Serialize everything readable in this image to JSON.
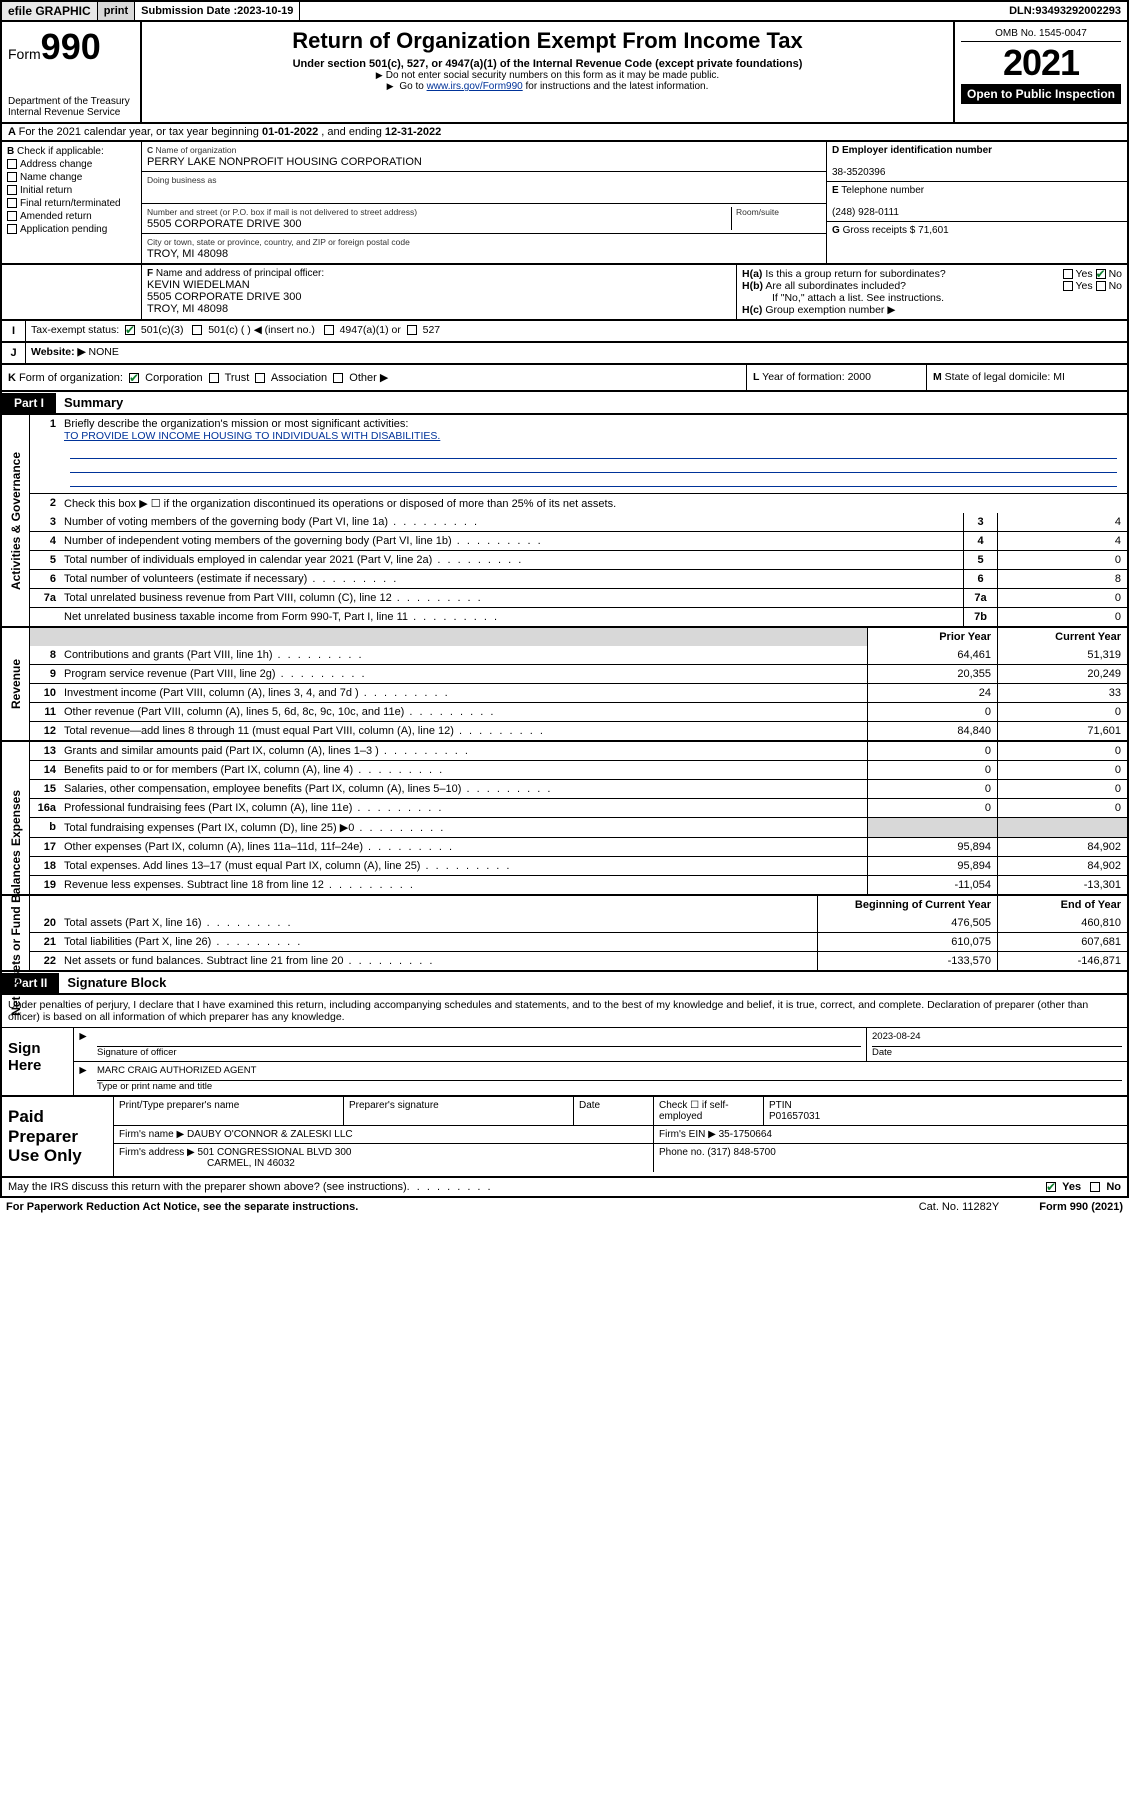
{
  "topbar": {
    "efile": "efile GRAPHIC",
    "print": "print",
    "submission_label": "Submission Date : ",
    "submission_date": "2023-10-19",
    "dln_label": "DLN: ",
    "dln": "93493292002293"
  },
  "header": {
    "form_label": "Form",
    "form_num": "990",
    "dept": "Department of the Treasury",
    "irs": "Internal Revenue Service",
    "title": "Return of Organization Exempt From Income Tax",
    "sub1": "Under section 501(c), 527, or 4947(a)(1) of the Internal Revenue Code (except private foundations)",
    "sub2": "Do not enter social security numbers on this form as it may be made public.",
    "sub3_pre": "Go to ",
    "sub3_link": "www.irs.gov/Form990",
    "sub3_post": " for instructions and the latest information.",
    "omb": "OMB No. 1545-0047",
    "year": "2021",
    "open": "Open to Public Inspection"
  },
  "A": {
    "text_pre": "For the 2021 calendar year, or tax year beginning ",
    "begin": "01-01-2022",
    "mid": " , and ending ",
    "end": "12-31-2022"
  },
  "B": {
    "label": "Check if applicable:",
    "opts": [
      "Address change",
      "Name change",
      "Initial return",
      "Final return/terminated",
      "Amended return",
      "Application pending"
    ]
  },
  "C": {
    "name_label": "Name of organization",
    "name": "PERRY LAKE NONPROFIT HOUSING CORPORATION",
    "dba_label": "Doing business as",
    "dba": "",
    "addr_label": "Number and street (or P.O. box if mail is not delivered to street address)",
    "room_label": "Room/suite",
    "addr": "5505 CORPORATE DRIVE 300",
    "city_label": "City or town, state or province, country, and ZIP or foreign postal code",
    "city": "TROY, MI  48098"
  },
  "D": {
    "label": "Employer identification number",
    "val": "38-3520396"
  },
  "E": {
    "label": "Telephone number",
    "val": "(248) 928-0111"
  },
  "G": {
    "label": "Gross receipts $",
    "val": "71,601"
  },
  "F": {
    "label": "Name and address of principal officer:",
    "name": "KEVIN WIEDELMAN",
    "addr1": "5505 CORPORATE DRIVE 300",
    "addr2": "TROY, MI  48098"
  },
  "H": {
    "a": "Is this a group return for subordinates?",
    "a_yes": "Yes",
    "a_no": "No",
    "b": "Are all subordinates included?",
    "b_note": "If \"No,\" attach a list. See instructions.",
    "c": "Group exemption number ▶"
  },
  "I": {
    "label": "Tax-exempt status:",
    "opts": [
      "501(c)(3)",
      "501(c) (  ) ◀ (insert no.)",
      "4947(a)(1) or",
      "527"
    ]
  },
  "J": {
    "label": "Website: ▶",
    "val": "NONE"
  },
  "K": {
    "label": "Form of organization:",
    "opts": [
      "Corporation",
      "Trust",
      "Association",
      "Other ▶"
    ]
  },
  "L": {
    "label": "Year of formation:",
    "val": "2000"
  },
  "M": {
    "label": "State of legal domicile:",
    "val": "MI"
  },
  "part1": {
    "tag": "Part I",
    "title": "Summary",
    "sections": {
      "gov": "Activities & Governance",
      "rev": "Revenue",
      "exp": "Expenses",
      "net": "Net Assets or Fund Balances"
    },
    "line1": "Briefly describe the organization's mission or most significant activities:",
    "mission": "TO PROVIDE LOW INCOME HOUSING TO INDIVIDUALS WITH DISABILITIES.",
    "line2": "Check this box ▶ ☐  if the organization discontinued its operations or disposed of more than 25% of its net assets.",
    "hdr_prior": "Prior Year",
    "hdr_curr": "Current Year",
    "hdr_beg": "Beginning of Current Year",
    "hdr_end": "End of Year",
    "rows_gov": [
      {
        "n": "3",
        "d": "Number of voting members of the governing body (Part VI, line 1a)",
        "box": "3",
        "v": "4"
      },
      {
        "n": "4",
        "d": "Number of independent voting members of the governing body (Part VI, line 1b)",
        "box": "4",
        "v": "4"
      },
      {
        "n": "5",
        "d": "Total number of individuals employed in calendar year 2021 (Part V, line 2a)",
        "box": "5",
        "v": "0"
      },
      {
        "n": "6",
        "d": "Total number of volunteers (estimate if necessary)",
        "box": "6",
        "v": "8"
      },
      {
        "n": "7a",
        "d": "Total unrelated business revenue from Part VIII, column (C), line 12",
        "box": "7a",
        "v": "0"
      },
      {
        "n": "",
        "d": "Net unrelated business taxable income from Form 990-T, Part I, line 11",
        "box": "7b",
        "v": "0"
      }
    ],
    "rows_rev": [
      {
        "n": "8",
        "d": "Contributions and grants (Part VIII, line 1h)",
        "p": "64,461",
        "c": "51,319"
      },
      {
        "n": "9",
        "d": "Program service revenue (Part VIII, line 2g)",
        "p": "20,355",
        "c": "20,249"
      },
      {
        "n": "10",
        "d": "Investment income (Part VIII, column (A), lines 3, 4, and 7d )",
        "p": "24",
        "c": "33"
      },
      {
        "n": "11",
        "d": "Other revenue (Part VIII, column (A), lines 5, 6d, 8c, 9c, 10c, and 11e)",
        "p": "0",
        "c": "0"
      },
      {
        "n": "12",
        "d": "Total revenue—add lines 8 through 11 (must equal Part VIII, column (A), line 12)",
        "p": "84,840",
        "c": "71,601"
      }
    ],
    "rows_exp": [
      {
        "n": "13",
        "d": "Grants and similar amounts paid (Part IX, column (A), lines 1–3 )",
        "p": "0",
        "c": "0"
      },
      {
        "n": "14",
        "d": "Benefits paid to or for members (Part IX, column (A), line 4)",
        "p": "0",
        "c": "0"
      },
      {
        "n": "15",
        "d": "Salaries, other compensation, employee benefits (Part IX, column (A), lines 5–10)",
        "p": "0",
        "c": "0"
      },
      {
        "n": "16a",
        "d": "Professional fundraising fees (Part IX, column (A), line 11e)",
        "p": "0",
        "c": "0"
      },
      {
        "n": "b",
        "d": "Total fundraising expenses (Part IX, column (D), line 25) ▶0",
        "p": "",
        "c": "",
        "shaded": true
      },
      {
        "n": "17",
        "d": "Other expenses (Part IX, column (A), lines 11a–11d, 11f–24e)",
        "p": "95,894",
        "c": "84,902"
      },
      {
        "n": "18",
        "d": "Total expenses. Add lines 13–17 (must equal Part IX, column (A), line 25)",
        "p": "95,894",
        "c": "84,902"
      },
      {
        "n": "19",
        "d": "Revenue less expenses. Subtract line 18 from line 12",
        "p": "-11,054",
        "c": "-13,301"
      }
    ],
    "rows_net": [
      {
        "n": "20",
        "d": "Total assets (Part X, line 16)",
        "p": "476,505",
        "c": "460,810"
      },
      {
        "n": "21",
        "d": "Total liabilities (Part X, line 26)",
        "p": "610,075",
        "c": "607,681"
      },
      {
        "n": "22",
        "d": "Net assets or fund balances. Subtract line 21 from line 20",
        "p": "-133,570",
        "c": "-146,871"
      }
    ]
  },
  "part2": {
    "tag": "Part II",
    "title": "Signature Block"
  },
  "penalties": "Under penalties of perjury, I declare that I have examined this return, including accompanying schedules and statements, and to the best of my knowledge and belief, it is true, correct, and complete. Declaration of preparer (other than officer) is based on all information of which preparer has any knowledge.",
  "sign": {
    "label": "Sign Here",
    "sig_label": "Signature of officer",
    "date_label": "Date",
    "date": "2023-08-24",
    "name": "MARC CRAIG  AUTHORIZED AGENT",
    "name_label": "Type or print name and title"
  },
  "paid": {
    "label": "Paid Preparer Use Only",
    "h1": "Print/Type preparer's name",
    "h2": "Preparer's signature",
    "h3": "Date",
    "check_label": "Check ☐ if self-employed",
    "ptin_label": "PTIN",
    "ptin": "P01657031",
    "firm_label": "Firm's name  ▶",
    "firm": "DAUBY O'CONNOR & ZALESKI LLC",
    "ein_label": "Firm's EIN ▶",
    "ein": "35-1750664",
    "addr_label": "Firm's address ▶",
    "addr1": "501 CONGRESSIONAL BLVD 300",
    "addr2": "CARMEL, IN  46032",
    "phone_label": "Phone no.",
    "phone": "(317) 848-5700"
  },
  "footer": {
    "discuss": "May the IRS discuss this return with the preparer shown above? (see instructions)",
    "yes": "Yes",
    "no": "No",
    "pra": "For Paperwork Reduction Act Notice, see the separate instructions.",
    "cat": "Cat. No. 11282Y",
    "form": "Form 990 (2021)"
  }
}
